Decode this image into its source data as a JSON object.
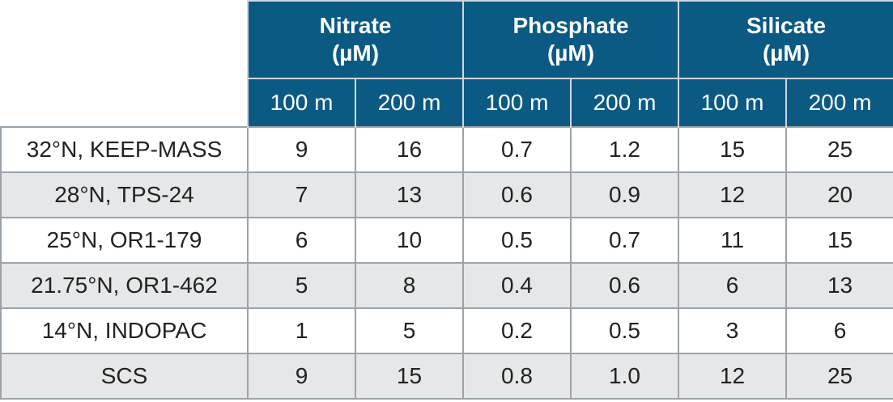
{
  "groups": [
    {
      "line1": "Nitrate",
      "line2": "(µM)"
    },
    {
      "line1": "Phosphate",
      "line2": "(µM)"
    },
    {
      "line1": "Silicate",
      "line2": "(µM)"
    }
  ],
  "depths": [
    "100 m",
    "200 m",
    "100 m",
    "200 m",
    "100 m",
    "200 m"
  ],
  "rows": [
    {
      "station": "32°N, KEEP-MASS",
      "values": [
        "9",
        "16",
        "0.7",
        "1.2",
        "15",
        "25"
      ]
    },
    {
      "station": "28°N, TPS-24",
      "values": [
        "7",
        "13",
        "0.6",
        "0.9",
        "12",
        "20"
      ]
    },
    {
      "station": "25°N, OR1-179",
      "values": [
        "6",
        "10",
        "0.5",
        "0.7",
        "11",
        "15"
      ]
    },
    {
      "station": "21.75°N, OR1-462",
      "values": [
        "5",
        "8",
        "0.4",
        "0.6",
        "6",
        "13"
      ]
    },
    {
      "station": "14°N, INDOPAC",
      "values": [
        "1",
        "5",
        "0.2",
        "0.5",
        "3",
        "6"
      ]
    },
    {
      "station": "SCS",
      "values": [
        "9",
        "15",
        "0.8",
        "1.0",
        "12",
        "25"
      ]
    }
  ],
  "colors": {
    "header_bg": "#0b5a84",
    "header_text": "#ffffff",
    "stripe": "#e6e7e8"
  }
}
